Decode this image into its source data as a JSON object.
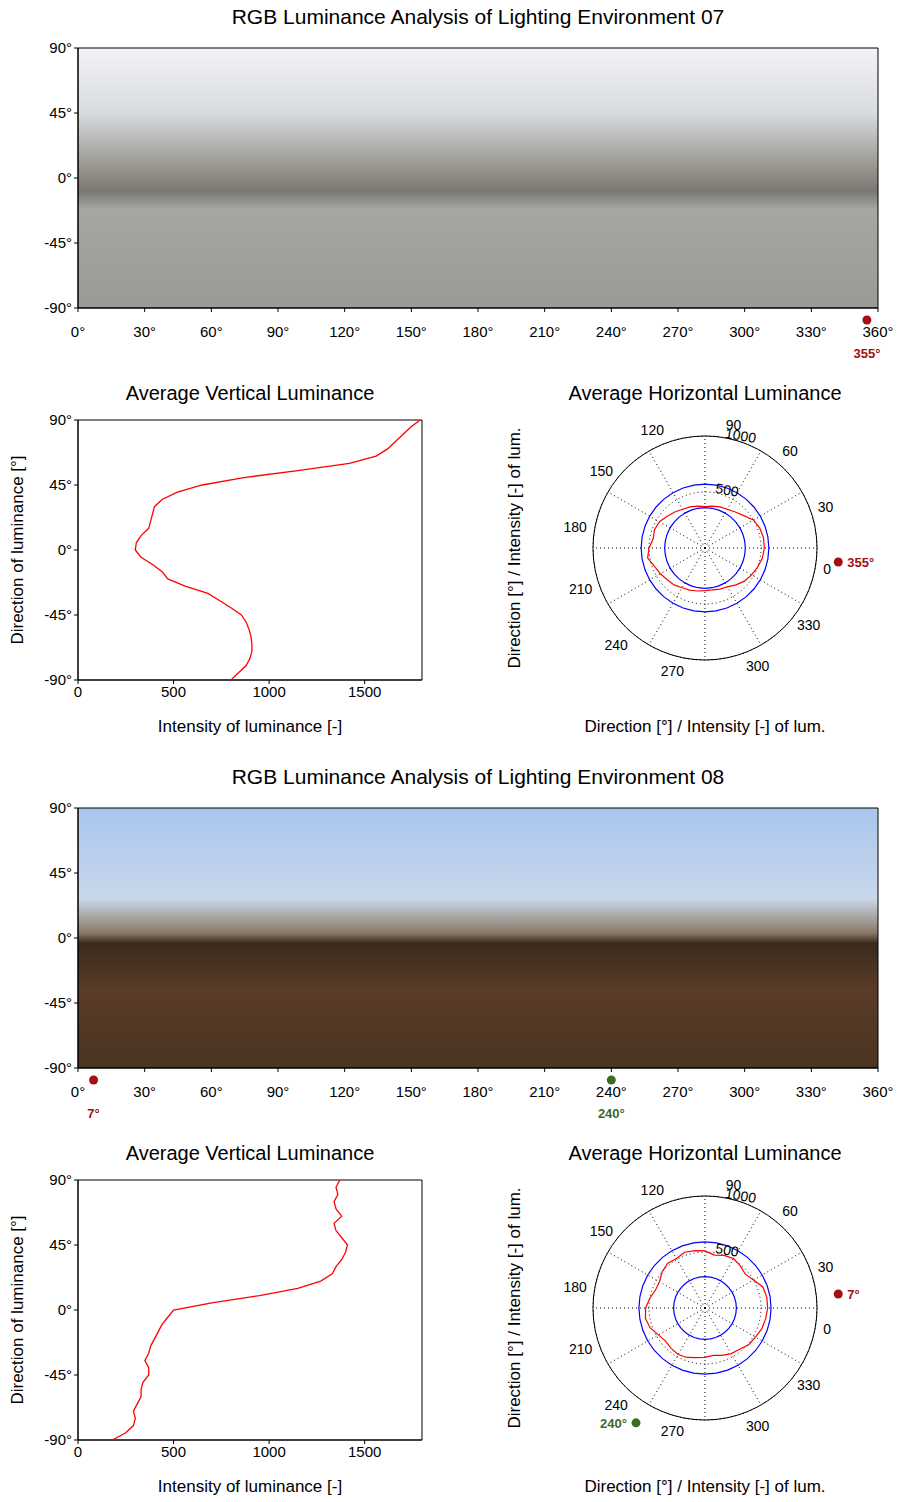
{
  "chart_data": [
    {
      "type": "image",
      "title": "RGB Luminance Analysis of Lighting Environment 07",
      "xlim": [
        0,
        360
      ],
      "xticks": [
        {
          "value": 0,
          "label": "0°"
        },
        {
          "value": 30,
          "label": "30°"
        },
        {
          "value": 60,
          "label": "60°"
        },
        {
          "value": 90,
          "label": "90°"
        },
        {
          "value": 120,
          "label": "120°"
        },
        {
          "value": 150,
          "label": "150°"
        },
        {
          "value": 180,
          "label": "180°"
        },
        {
          "value": 210,
          "label": "210°"
        },
        {
          "value": 240,
          "label": "240°"
        },
        {
          "value": 270,
          "label": "270°"
        },
        {
          "value": 300,
          "label": "300°"
        },
        {
          "value": 330,
          "label": "330°"
        },
        {
          "value": 360,
          "label": "360°"
        }
      ],
      "ylim": [
        -90,
        90
      ],
      "yticks": [
        {
          "value": -90,
          "label": "-90°"
        },
        {
          "value": -45,
          "label": "-45°"
        },
        {
          "value": 0,
          "label": "0°"
        },
        {
          "value": 45,
          "label": "45°"
        },
        {
          "value": 90,
          "label": "90°"
        }
      ],
      "markers": [
        {
          "value": 355,
          "label": "355°",
          "color": "#a50f0f"
        }
      ]
    },
    {
      "type": "line",
      "title": "Average Vertical Luminance",
      "x_label": "Intensity of luminance [-]",
      "y_label": "Direction of luminance [°]",
      "xlim": [
        0,
        1800
      ],
      "xticks": [
        0,
        500,
        1000,
        1500
      ],
      "ylim": [
        -90,
        90
      ],
      "yticks": [
        {
          "value": -90,
          "label": "-90°"
        },
        {
          "value": -45,
          "label": "-45°"
        },
        {
          "value": 0,
          "label": "0°"
        },
        {
          "value": 45,
          "label": "45°"
        },
        {
          "value": 90,
          "label": "90°"
        }
      ],
      "color": "#ff0000",
      "x": [
        800,
        840,
        880,
        900,
        910,
        910,
        905,
        895,
        880,
        855,
        800,
        740,
        680,
        560,
        470,
        440,
        390,
        330,
        300,
        305,
        330,
        370,
        380,
        390,
        400,
        440,
        520,
        650,
        860,
        1150,
        1420,
        1560,
        1620,
        1660,
        1700,
        1740,
        1790
      ],
      "y": [
        -90,
        -85,
        -80,
        -75,
        -70,
        -65,
        -60,
        -55,
        -50,
        -45,
        -40,
        -35,
        -30,
        -25,
        -20,
        -15,
        -10,
        -5,
        0,
        5,
        10,
        15,
        20,
        25,
        30,
        35,
        40,
        45,
        50,
        55,
        60,
        65,
        70,
        75,
        80,
        85,
        90
      ]
    },
    {
      "type": "polar",
      "title": "Average Horizontal Luminance",
      "x_label": "Direction [°] / Intensity [-] of lum.",
      "y_label": "Direction [°] / Intensity [-] of lum.",
      "xticks": [
        0,
        30,
        60,
        90,
        120,
        150,
        180,
        210,
        240,
        270,
        300,
        330
      ],
      "rlim": [
        0,
        1000
      ],
      "rticks": [
        500,
        1000
      ],
      "x": [
        0,
        10,
        20,
        30,
        40,
        50,
        60,
        70,
        80,
        90,
        100,
        110,
        120,
        130,
        140,
        150,
        160,
        170,
        180,
        190,
        200,
        210,
        220,
        230,
        240,
        250,
        260,
        270,
        280,
        290,
        300,
        310,
        320,
        330,
        340,
        350
      ],
      "values": [
        530,
        520,
        500,
        450,
        420,
        400,
        390,
        380,
        370,
        380,
        390,
        400,
        420,
        440,
        470,
        480,
        470,
        500,
        520,
        480,
        460,
        440,
        430,
        410,
        400,
        390,
        380,
        380,
        390,
        400,
        430,
        460,
        480,
        500,
        520,
        530
      ],
      "color": "#ff0000",
      "circles": [
        {
          "value": 570,
          "color": "#0000ff"
        },
        {
          "value": 360,
          "color": "#0000ff"
        }
      ],
      "markers": [
        {
          "value": 355,
          "label": "355°",
          "color": "#a50f0f"
        }
      ]
    },
    {
      "type": "image",
      "title": "RGB Luminance Analysis of Lighting Environment 08",
      "xlim": [
        0,
        360
      ],
      "xticks": [
        {
          "value": 0,
          "label": "0°"
        },
        {
          "value": 30,
          "label": "30°"
        },
        {
          "value": 60,
          "label": "60°"
        },
        {
          "value": 90,
          "label": "90°"
        },
        {
          "value": 120,
          "label": "120°"
        },
        {
          "value": 150,
          "label": "150°"
        },
        {
          "value": 180,
          "label": "180°"
        },
        {
          "value": 210,
          "label": "210°"
        },
        {
          "value": 240,
          "label": "240°"
        },
        {
          "value": 270,
          "label": "270°"
        },
        {
          "value": 300,
          "label": "300°"
        },
        {
          "value": 330,
          "label": "330°"
        },
        {
          "value": 360,
          "label": "360°"
        }
      ],
      "ylim": [
        -90,
        90
      ],
      "yticks": [
        {
          "value": -90,
          "label": "-90°"
        },
        {
          "value": -45,
          "label": "-45°"
        },
        {
          "value": 0,
          "label": "0°"
        },
        {
          "value": 45,
          "label": "45°"
        },
        {
          "value": 90,
          "label": "90°"
        }
      ],
      "markers": [
        {
          "value": 7,
          "label": "7°",
          "color": "#a50f0f"
        },
        {
          "value": 240,
          "label": "240°",
          "color": "#3d6b1f"
        }
      ]
    },
    {
      "type": "line",
      "title": "Average Vertical Luminance",
      "x_label": "Intensity of luminance [-]",
      "y_label": "Direction of luminance [°]",
      "xlim": [
        0,
        1800
      ],
      "xticks": [
        0,
        500,
        1000,
        1500
      ],
      "ylim": [
        -90,
        90
      ],
      "yticks": [
        {
          "value": -90,
          "label": "-90°"
        },
        {
          "value": -45,
          "label": "-45°"
        },
        {
          "value": 0,
          "label": "0°"
        },
        {
          "value": 45,
          "label": "45°"
        },
        {
          "value": 90,
          "label": "90°"
        }
      ],
      "color": "#ff0000",
      "x": [
        180,
        250,
        290,
        300,
        290,
        310,
        330,
        330,
        340,
        370,
        370,
        350,
        370,
        380,
        400,
        420,
        440,
        470,
        500,
        700,
        950,
        1150,
        1270,
        1330,
        1350,
        1380,
        1400,
        1410,
        1380,
        1350,
        1340,
        1380,
        1350,
        1340,
        1360,
        1350,
        1370
      ],
      "y": [
        -90,
        -85,
        -80,
        -75,
        -70,
        -65,
        -60,
        -55,
        -50,
        -45,
        -40,
        -35,
        -30,
        -25,
        -20,
        -15,
        -10,
        -5,
        0,
        5,
        10,
        15,
        20,
        25,
        30,
        35,
        40,
        45,
        50,
        55,
        60,
        65,
        70,
        75,
        80,
        85,
        90
      ]
    },
    {
      "type": "polar",
      "title": "Average Horizontal Luminance",
      "x_label": "Direction [°] / Intensity [-] of lum.",
      "y_label": "Direction [°] / Intensity [-] of lum.",
      "xticks": [
        0,
        30,
        60,
        90,
        120,
        150,
        180,
        210,
        240,
        270,
        300,
        330
      ],
      "rlim": [
        0,
        1000
      ],
      "rticks": [
        500,
        1000
      ],
      "x": [
        0,
        10,
        20,
        30,
        40,
        50,
        60,
        70,
        80,
        90,
        100,
        110,
        120,
        130,
        140,
        150,
        160,
        170,
        180,
        190,
        200,
        210,
        220,
        230,
        240,
        250,
        260,
        270,
        280,
        290,
        300,
        310,
        320,
        330,
        340,
        350
      ],
      "values": [
        560,
        550,
        500,
        470,
        490,
        510,
        500,
        480,
        510,
        520,
        530,
        510,
        520,
        500,
        470,
        470,
        500,
        530,
        540,
        520,
        480,
        460,
        470,
        480,
        470,
        450,
        440,
        430,
        450,
        470,
        480,
        510,
        520,
        540,
        550,
        560
      ],
      "color": "#ff0000",
      "circles": [
        {
          "value": 590,
          "color": "#0000ff"
        },
        {
          "value": 280,
          "color": "#0000ff"
        }
      ],
      "markers": [
        {
          "value": 7,
          "label": "7°",
          "color": "#a50f0f"
        },
        {
          "value": 240,
          "label": "240°",
          "color": "#3d6b1f"
        }
      ]
    }
  ]
}
